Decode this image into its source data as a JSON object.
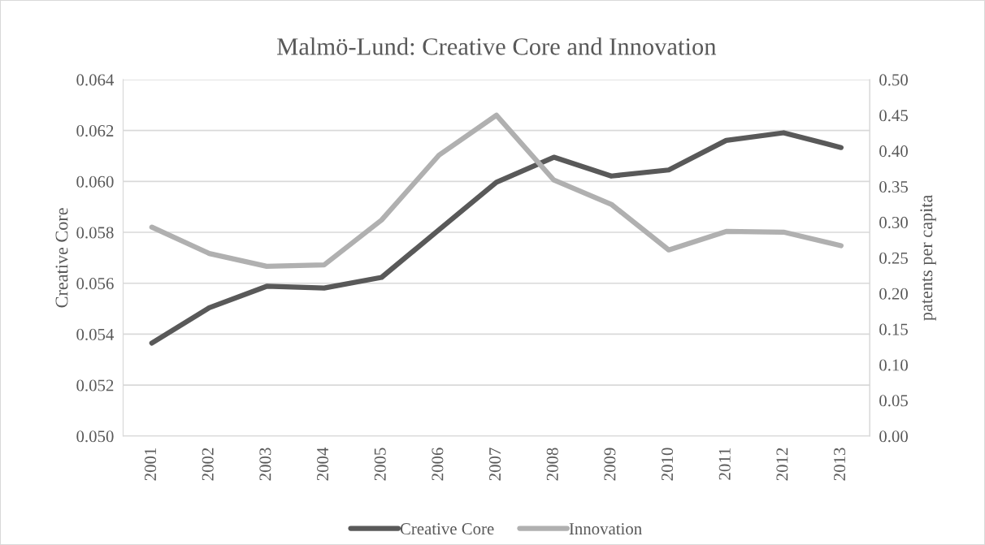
{
  "chart_data": {
    "type": "line",
    "title": "Malmö-Lund: Creative Core and Innovation",
    "ylabel": "Creative Core",
    "y2label": "patents per capita",
    "categories": [
      "2001",
      "2002",
      "2003",
      "2004",
      "2005",
      "2006",
      "2007",
      "2008",
      "2009",
      "2010",
      "2011",
      "2012",
      "2013"
    ],
    "series": [
      {
        "name": "Creative Core",
        "color": "#595959",
        "values": [
          0.05365,
          0.05504,
          0.05588,
          0.05581,
          0.05623,
          0.0581,
          0.05997,
          0.06095,
          0.06021,
          0.06045,
          0.06161,
          0.06191,
          0.06133
        ]
      },
      {
        "name": "Innovation",
        "color": "#b0b0b0",
        "axis": "y2",
        "values": [
          0.293,
          0.256,
          0.238,
          0.24,
          0.303,
          0.394,
          0.45,
          0.359,
          0.325,
          0.261,
          0.287,
          0.286,
          0.267
        ]
      }
    ],
    "ylim": [
      0.05,
      0.064
    ],
    "yticks": [
      {
        "value": 0.05,
        "label": "0.050"
      },
      {
        "value": 0.052,
        "label": "0.052"
      },
      {
        "value": 0.054,
        "label": "0.054"
      },
      {
        "value": 0.056,
        "label": "0.056"
      },
      {
        "value": 0.058,
        "label": "0.058"
      },
      {
        "value": 0.06,
        "label": "0.060"
      },
      {
        "value": 0.062,
        "label": "0.062"
      },
      {
        "value": 0.064,
        "label": "0.064"
      }
    ],
    "y2lim": [
      0,
      0.5
    ],
    "y2ticks": [
      {
        "value": 0,
        "label": "0.00"
      },
      0.05,
      {
        "value": 0.1,
        "label": "0.10"
      },
      0.15,
      {
        "value": 0.2,
        "label": "0.20"
      },
      0.25,
      {
        "value": 0.3,
        "label": "0.30"
      },
      0.35,
      {
        "value": 0.4,
        "label": "0.40"
      },
      0.45,
      {
        "value": 0.5,
        "label": "0.50"
      }
    ],
    "grid": "y",
    "legend": "bottom",
    "marker": "none",
    "line_style": "solid"
  }
}
